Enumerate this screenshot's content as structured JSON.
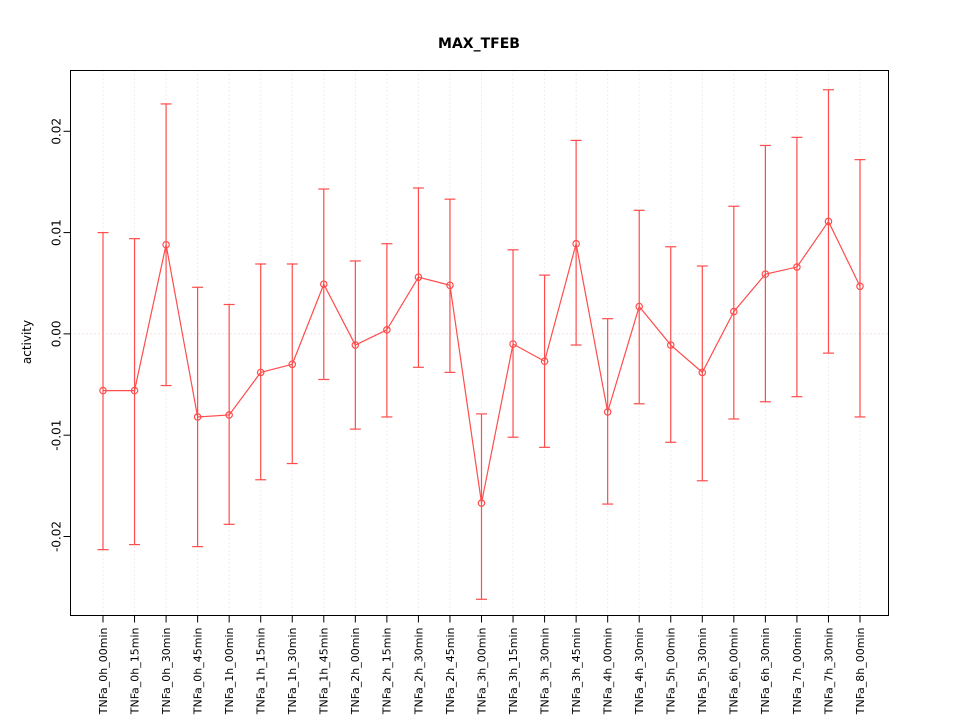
{
  "chart_data": {
    "type": "line",
    "title": "MAX_TFEB",
    "ylabel": "activity",
    "xlabel": "",
    "legend": "none",
    "grid": "vertical-dotted-plus-zero-line",
    "marker": "open-circle",
    "error_bars": true,
    "yticks": [
      -0.02,
      -0.01,
      0,
      0.01,
      0.02
    ],
    "ylim": [
      -0.0278,
      0.026
    ],
    "colors": {
      "series": "#ff4c4c",
      "grid": "#dcdcdc",
      "zero_line": "#e6c3c3",
      "axis": "#000000",
      "background": "#ffffff"
    },
    "categories": [
      "TNFa_0h_00min",
      "TNFa_0h_15min",
      "TNFa_0h_30min",
      "TNFa_0h_45min",
      "TNFa_1h_00min",
      "TNFa_1h_15min",
      "TNFa_1h_30min",
      "TNFa_1h_45min",
      "TNFa_2h_00min",
      "TNFa_2h_15min",
      "TNFa_2h_30min",
      "TNFa_2h_45min",
      "TNFa_3h_00min",
      "TNFa_3h_15min",
      "TNFa_3h_30min",
      "TNFa_3h_45min",
      "TNFa_4h_00min",
      "TNFa_4h_30min",
      "TNFa_5h_00min",
      "TNFa_5h_30min",
      "TNFa_6h_00min",
      "TNFa_6h_30min",
      "TNFa_7h_00min",
      "TNFa_7h_30min",
      "TNFa_8h_00min"
    ],
    "values": [
      -0.0056,
      -0.0056,
      0.0088,
      -0.0082,
      -0.008,
      -0.0038,
      -0.003,
      0.0049,
      -0.0011,
      0.0004,
      0.0056,
      0.0048,
      -0.0167,
      -0.001,
      -0.0027,
      0.0089,
      -0.0077,
      0.0027,
      -0.0011,
      -0.0038,
      0.0022,
      0.0059,
      0.0066,
      0.0111,
      0.0047
    ],
    "error_high": [
      0.01,
      0.0094,
      0.0227,
      0.0046,
      0.0029,
      0.0069,
      0.0069,
      0.0143,
      0.0072,
      0.0089,
      0.0144,
      0.0133,
      -0.0079,
      0.0083,
      0.0058,
      0.0191,
      0.0015,
      0.0122,
      0.0086,
      0.0067,
      0.0126,
      0.0186,
      0.0194,
      0.0241,
      0.0172
    ],
    "error_low": [
      -0.0213,
      -0.0208,
      -0.0051,
      -0.021,
      -0.0188,
      -0.0144,
      -0.0128,
      -0.0045,
      -0.0094,
      -0.0082,
      -0.0033,
      -0.0038,
      -0.0262,
      -0.0102,
      -0.0112,
      -0.0011,
      -0.0168,
      -0.0069,
      -0.0107,
      -0.0145,
      -0.0084,
      -0.0067,
      -0.0062,
      -0.0019,
      -0.0082
    ]
  }
}
